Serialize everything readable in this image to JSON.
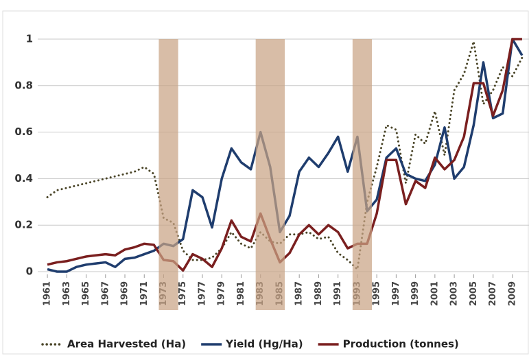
{
  "chart_data": {
    "type": "line",
    "x": [
      1961,
      1962,
      1963,
      1964,
      1965,
      1966,
      1967,
      1968,
      1969,
      1970,
      1971,
      1972,
      1973,
      1974,
      1975,
      1976,
      1977,
      1978,
      1979,
      1980,
      1981,
      1982,
      1983,
      1984,
      1985,
      1986,
      1987,
      1988,
      1989,
      1990,
      1991,
      1992,
      1993,
      1994,
      1995,
      1996,
      1997,
      1998,
      1999,
      2000,
      2001,
      2002,
      2003,
      2004,
      2005,
      2006,
      2007,
      2008,
      2009,
      2010
    ],
    "series": [
      {
        "name": "Area Harvested (Ha)",
        "color": "#4a4528",
        "dash": "dotted",
        "values": [
          0.32,
          0.35,
          0.36,
          0.37,
          0.38,
          0.39,
          0.4,
          0.41,
          0.42,
          0.43,
          0.45,
          0.42,
          0.23,
          0.21,
          0.09,
          0.05,
          0.05,
          0.06,
          0.1,
          0.17,
          0.12,
          0.1,
          0.17,
          0.13,
          0.12,
          0.16,
          0.16,
          0.17,
          0.14,
          0.15,
          0.08,
          0.05,
          0.01,
          0.3,
          0.45,
          0.63,
          0.61,
          0.38,
          0.59,
          0.55,
          0.69,
          0.5,
          0.78,
          0.85,
          0.99,
          0.72,
          0.78,
          0.88,
          0.84,
          0.92
        ]
      },
      {
        "name": "Yield (Hg/Ha)",
        "color": "#1f3d6e",
        "dash": "solid",
        "values": [
          0.01,
          0,
          0,
          0.02,
          0.03,
          0.035,
          0.04,
          0.02,
          0.055,
          0.06,
          0.075,
          0.09,
          0.12,
          0.11,
          0.14,
          0.35,
          0.32,
          0.19,
          0.4,
          0.53,
          0.47,
          0.44,
          0.6,
          0.45,
          0.17,
          0.24,
          0.43,
          0.49,
          0.45,
          0.51,
          0.58,
          0.43,
          0.58,
          0.26,
          0.31,
          0.49,
          0.53,
          0.42,
          0.4,
          0.39,
          0.46,
          0.62,
          0.4,
          0.45,
          0.63,
          0.9,
          0.66,
          0.68,
          1.0,
          0.93
        ]
      },
      {
        "name": "Production (tonnes)",
        "color": "#7a1f1f",
        "dash": "solid",
        "values": [
          0.03,
          0.04,
          0.045,
          0.055,
          0.065,
          0.07,
          0.075,
          0.07,
          0.095,
          0.105,
          0.12,
          0.115,
          0.05,
          0.045,
          0.005,
          0.075,
          0.055,
          0.02,
          0.1,
          0.22,
          0.15,
          0.13,
          0.25,
          0.14,
          0.04,
          0.08,
          0.16,
          0.2,
          0.16,
          0.2,
          0.17,
          0.1,
          0.12,
          0.12,
          0.25,
          0.48,
          0.48,
          0.29,
          0.39,
          0.36,
          0.49,
          0.44,
          0.48,
          0.58,
          0.81,
          0.81,
          0.67,
          0.78,
          1.0,
          1.0
        ]
      }
    ],
    "shaded_periods": [
      [
        1973,
        1974
      ],
      [
        1983,
        1985
      ],
      [
        1993,
        1994
      ]
    ],
    "shade_color": "#c9a385",
    "xlim": [
      1960.5,
      2010.5
    ],
    "xticks": [
      1961,
      1963,
      1965,
      1967,
      1969,
      1971,
      1973,
      1975,
      1977,
      1979,
      1981,
      1983,
      1985,
      1987,
      1989,
      1991,
      1993,
      1995,
      1997,
      1999,
      2001,
      2003,
      2005,
      2007,
      2009
    ],
    "ylim": [
      0,
      1
    ],
    "yticks": [
      0,
      0.2,
      0.4,
      0.6,
      0.8,
      1
    ],
    "grid": true,
    "legend": "bottom"
  }
}
